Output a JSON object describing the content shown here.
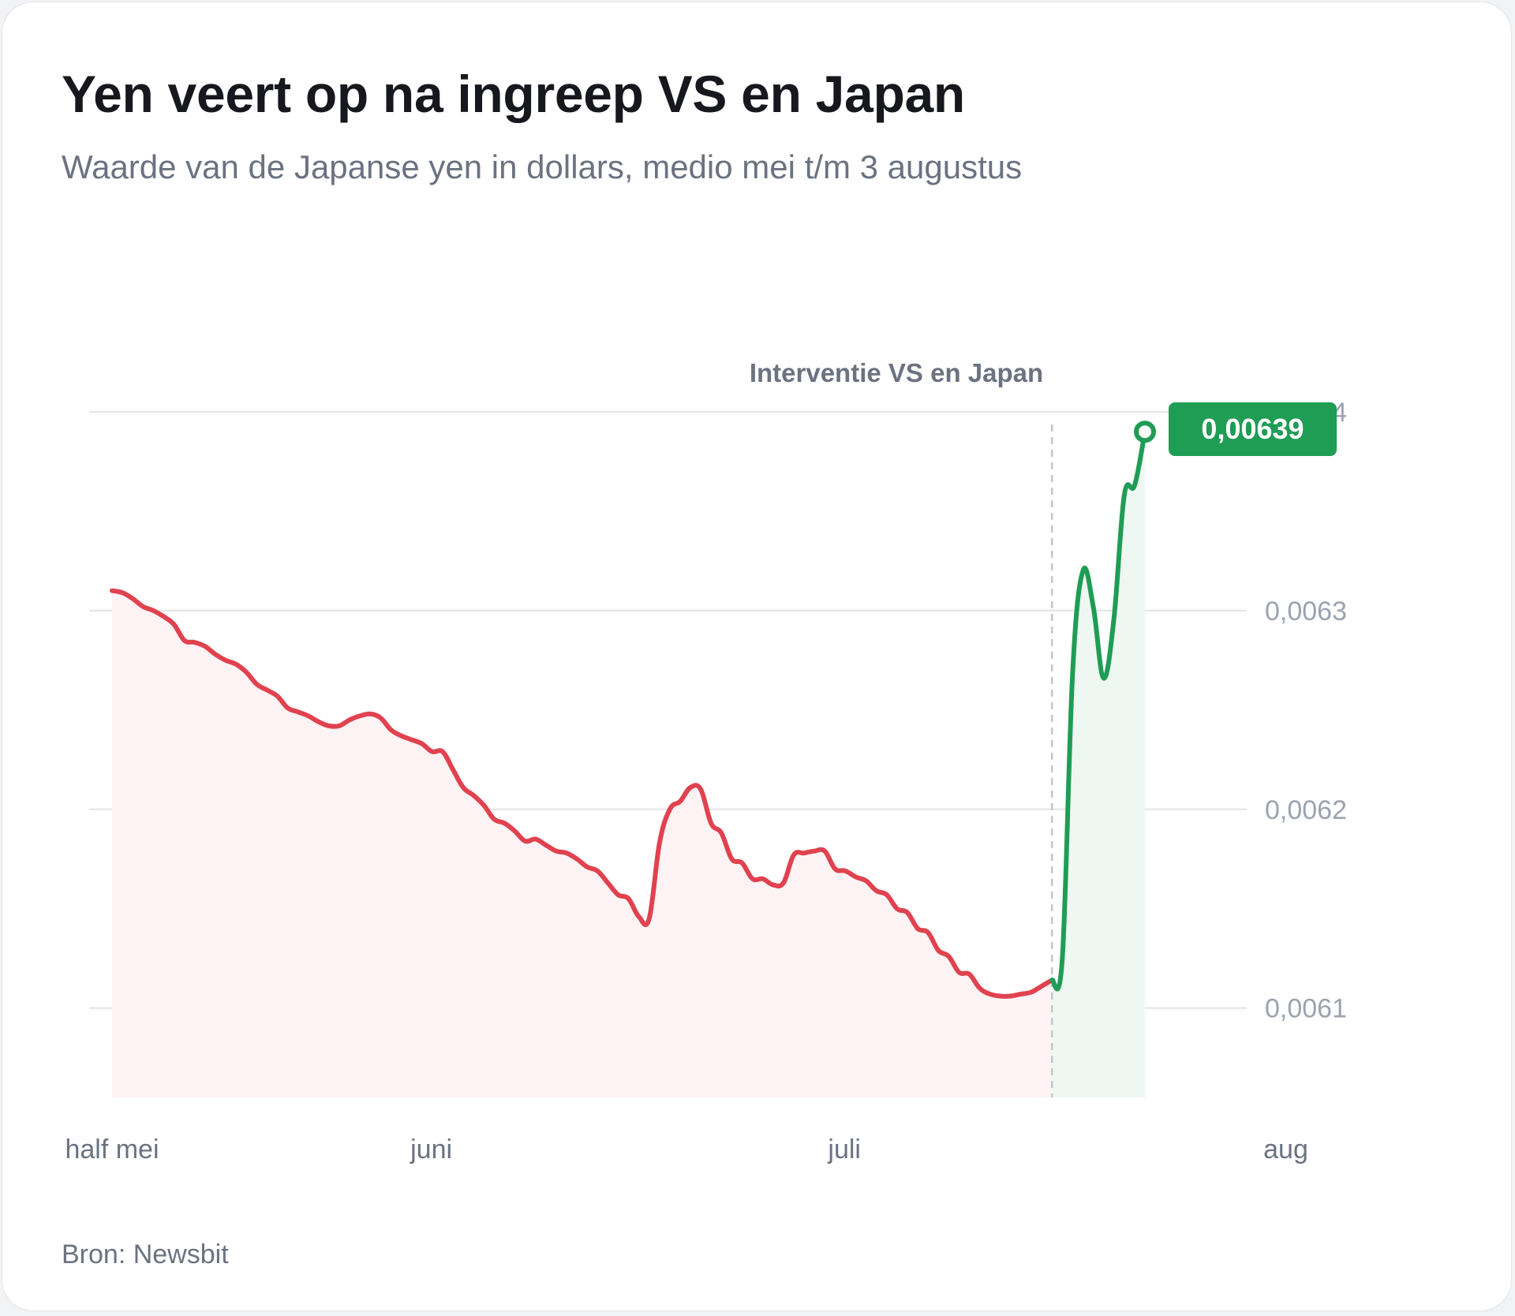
{
  "title": "Yen veert op na ingreep VS en Japan",
  "subtitle": "Waarde van de Japanse yen in dollars, medio mei t/m 3 augustus",
  "source": "Bron: Newsbit",
  "colors": {
    "decline": "#e0424f",
    "decline_fill": "#fdf3f4",
    "rise": "#1f9d55",
    "rise_fill": "#eff7f2",
    "grid": "#e7e8ea",
    "marker_line": "#c4c6ca"
  },
  "chart_data": {
    "type": "line",
    "xlabel": "",
    "ylabel": "",
    "ylim": [
      0.006055,
      0.0064
    ],
    "y_ticks": [
      {
        "value": 0.0061,
        "label": "0,0061"
      },
      {
        "value": 0.0062,
        "label": "0,0062"
      },
      {
        "value": 0.0063,
        "label": "0,0063"
      },
      {
        "value": 0.0064,
        "label": "0,0064"
      }
    ],
    "x_ticks": [
      {
        "day": 0,
        "label": "half mei"
      },
      {
        "day": 17,
        "label": "juni"
      },
      {
        "day": 39,
        "label": "juli"
      },
      {
        "day": 62.5,
        "label": "aug"
      }
    ],
    "grid": true,
    "annotation": {
      "label": "Interventie VS en Japan",
      "day": 60.5
    },
    "callout": {
      "label": "0,00639",
      "value": 0.00639
    },
    "series": [
      {
        "segment": "decline",
        "points": [
          [
            0,
            0.00631
          ],
          [
            0.55,
            0.006309
          ],
          [
            1.1,
            0.006306
          ],
          [
            1.65,
            0.006302
          ],
          [
            2.2,
            0.0063
          ],
          [
            2.75,
            0.006297
          ],
          [
            3.3,
            0.006293
          ],
          [
            3.85,
            0.006285
          ],
          [
            4.4,
            0.006284
          ],
          [
            4.95,
            0.006282
          ],
          [
            5.5,
            0.006278
          ],
          [
            6.05,
            0.006275
          ],
          [
            6.6,
            0.006273
          ],
          [
            7.15,
            0.006269
          ],
          [
            7.7,
            0.006263
          ],
          [
            8.25,
            0.00626
          ],
          [
            8.8,
            0.006257
          ],
          [
            9.35,
            0.006251
          ],
          [
            9.9,
            0.006249
          ],
          [
            10.45,
            0.006247
          ],
          [
            11.0,
            0.006244
          ],
          [
            11.55,
            0.006242
          ],
          [
            12.1,
            0.006242
          ],
          [
            12.65,
            0.006245
          ],
          [
            13.2,
            0.006247
          ],
          [
            13.75,
            0.006248
          ],
          [
            14.3,
            0.006246
          ],
          [
            14.85,
            0.00624
          ],
          [
            15.4,
            0.006237
          ],
          [
            15.95,
            0.006235
          ],
          [
            16.5,
            0.006233
          ],
          [
            17.05,
            0.006229
          ],
          [
            17.6,
            0.006229
          ],
          [
            18.15,
            0.00622
          ],
          [
            18.7,
            0.006211
          ],
          [
            19.25,
            0.006207
          ],
          [
            19.8,
            0.006202
          ],
          [
            20.35,
            0.006195
          ],
          [
            20.9,
            0.006193
          ],
          [
            21.45,
            0.006189
          ],
          [
            22.0,
            0.006184
          ],
          [
            22.55,
            0.006185
          ],
          [
            23.1,
            0.006182
          ],
          [
            23.65,
            0.006179
          ],
          [
            24.2,
            0.006178
          ],
          [
            24.75,
            0.006175
          ],
          [
            25.3,
            0.006171
          ],
          [
            25.85,
            0.006169
          ],
          [
            26.4,
            0.006163
          ],
          [
            26.95,
            0.006157
          ],
          [
            27.5,
            0.006155
          ],
          [
            28.05,
            0.006146
          ],
          [
            28.6,
            0.006145
          ],
          [
            29.15,
            0.006183
          ],
          [
            29.7,
            0.0062
          ],
          [
            30.25,
            0.006204
          ],
          [
            30.8,
            0.006211
          ],
          [
            31.35,
            0.00621
          ],
          [
            31.9,
            0.006193
          ],
          [
            32.45,
            0.006188
          ],
          [
            33.0,
            0.006175
          ],
          [
            33.55,
            0.006173
          ],
          [
            34.1,
            0.006165
          ],
          [
            34.65,
            0.006165
          ],
          [
            35.2,
            0.006162
          ],
          [
            35.75,
            0.006163
          ],
          [
            36.3,
            0.006177
          ],
          [
            36.85,
            0.006178
          ],
          [
            37.4,
            0.006179
          ],
          [
            37.95,
            0.006179
          ],
          [
            38.5,
            0.00617
          ],
          [
            39.05,
            0.006169
          ],
          [
            39.6,
            0.006166
          ],
          [
            40.15,
            0.006164
          ],
          [
            40.7,
            0.006159
          ],
          [
            41.25,
            0.006157
          ],
          [
            41.8,
            0.00615
          ],
          [
            42.35,
            0.006148
          ],
          [
            42.9,
            0.00614
          ],
          [
            43.45,
            0.006138
          ],
          [
            44.0,
            0.006129
          ],
          [
            44.55,
            0.006126
          ],
          [
            45.1,
            0.006118
          ],
          [
            45.65,
            0.006117
          ],
          [
            46.2,
            0.00611
          ],
          [
            46.75,
            0.006107
          ],
          [
            47.3,
            0.006106
          ],
          [
            47.85,
            0.006106
          ],
          [
            48.4,
            0.006107
          ],
          [
            48.95,
            0.006108
          ],
          [
            49.5,
            0.006111
          ],
          [
            50.05,
            0.006114
          ]
        ]
      },
      {
        "segment": "rise",
        "points": [
          [
            50.05,
            0.006114
          ],
          [
            50.6,
            0.006125
          ],
          [
            51.15,
            0.006269
          ],
          [
            51.7,
            0.00632
          ],
          [
            52.25,
            0.006302
          ],
          [
            52.8,
            0.006266
          ],
          [
            53.35,
            0.006296
          ],
          [
            53.9,
            0.006358
          ],
          [
            54.45,
            0.006363
          ],
          [
            55.0,
            0.00639
          ]
        ]
      }
    ]
  }
}
